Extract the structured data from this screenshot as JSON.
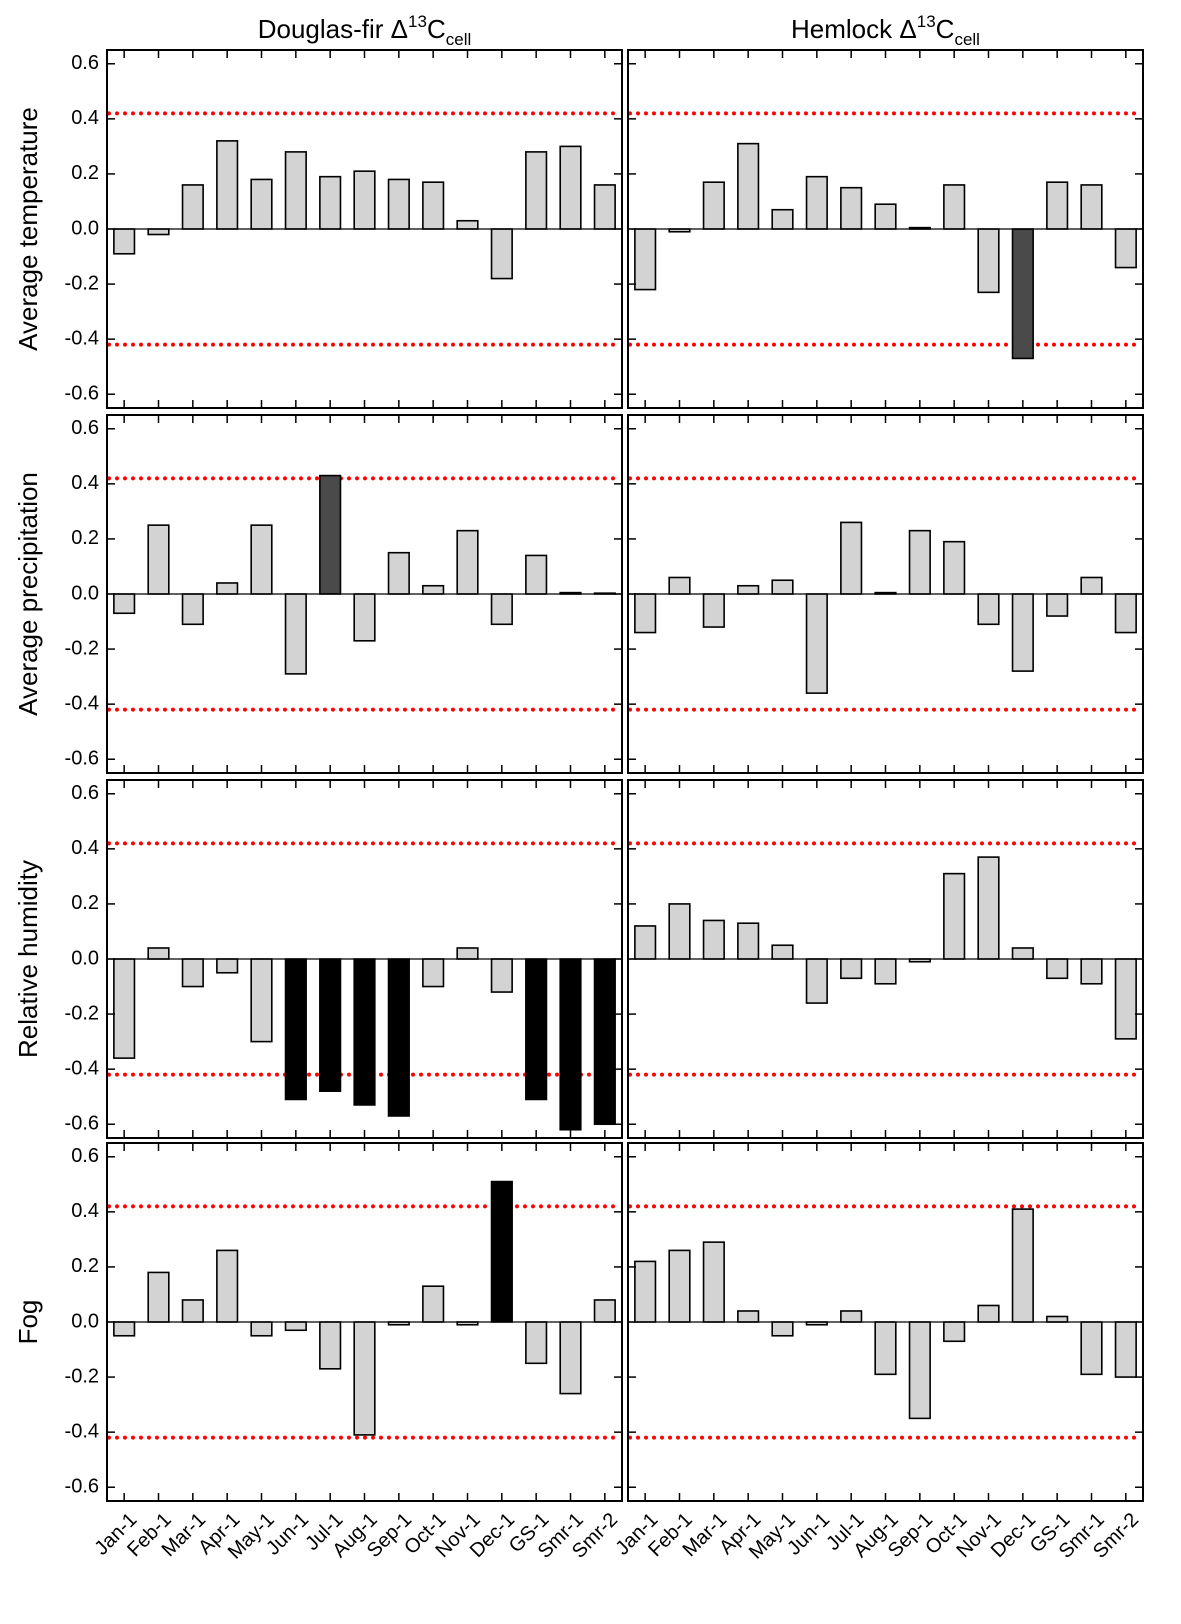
{
  "chart_data": [
    {
      "type": "bar",
      "title": {
        "text": "Douglas-fir Δ",
        "sup": "13",
        "base": "C",
        "sub": "cell"
      },
      "ylabel": "Average temperature",
      "categories": [
        "Jan-1",
        "Feb-1",
        "Mar-1",
        "Apr-1",
        "May-1",
        "Jun-1",
        "Jul-1",
        "Aug-1",
        "Sep-1",
        "Oct-1",
        "Nov-1",
        "Dec-1",
        "GS-1",
        "Smr-1",
        "Smr-2"
      ],
      "values": [
        -0.09,
        -0.02,
        0.16,
        0.32,
        0.18,
        0.28,
        0.19,
        0.21,
        0.18,
        0.17,
        0.03,
        -0.18,
        0.28,
        0.3,
        0.16
      ],
      "colors": [
        "#d3d3d3",
        "#d3d3d3",
        "#d3d3d3",
        "#d3d3d3",
        "#d3d3d3",
        "#d3d3d3",
        "#d3d3d3",
        "#d3d3d3",
        "#d3d3d3",
        "#d3d3d3",
        "#d3d3d3",
        "#d3d3d3",
        "#d3d3d3",
        "#d3d3d3",
        "#d3d3d3"
      ],
      "ylim": [
        -0.65,
        0.65
      ],
      "yticks": [
        -0.6,
        -0.4,
        -0.2,
        {
          "value": 0,
          "label": "0.0"
        },
        0.2,
        0.4,
        0.6
      ],
      "reference_lines": [
        0.42,
        -0.42
      ],
      "reference_color": "#ff0000"
    },
    {
      "type": "bar",
      "title": {
        "text": "Hemlock Δ",
        "sup": "13",
        "base": "C",
        "sub": "cell"
      },
      "categories": [
        "Jan-1",
        "Feb-1",
        "Mar-1",
        "Apr-1",
        "May-1",
        "Jun-1",
        "Jul-1",
        "Aug-1",
        "Sep-1",
        "Oct-1",
        "Nov-1",
        "Dec-1",
        "GS-1",
        "Smr-1",
        "Smr-2"
      ],
      "values": [
        -0.22,
        -0.01,
        0.17,
        0.31,
        0.07,
        0.19,
        0.15,
        0.09,
        0.005,
        0.16,
        -0.23,
        -0.47,
        0.17,
        0.16,
        -0.14
      ],
      "colors": [
        "#d3d3d3",
        "#d3d3d3",
        "#d3d3d3",
        "#d3d3d3",
        "#d3d3d3",
        "#d3d3d3",
        "#d3d3d3",
        "#d3d3d3",
        "#d3d3d3",
        "#d3d3d3",
        "#d3d3d3",
        "#4a4a4a",
        "#d3d3d3",
        "#d3d3d3",
        "#d3d3d3"
      ],
      "ylim": [
        -0.65,
        0.65
      ],
      "yticks": [
        -0.6,
        -0.4,
        -0.2,
        {
          "value": 0,
          "label": "0.0"
        },
        0.2,
        0.4,
        0.6
      ],
      "reference_lines": [
        0.42,
        -0.42
      ],
      "reference_color": "#ff0000"
    },
    {
      "type": "bar",
      "ylabel": "Average precipitation",
      "categories": [
        "Jan-1",
        "Feb-1",
        "Mar-1",
        "Apr-1",
        "May-1",
        "Jun-1",
        "Jul-1",
        "Aug-1",
        "Sep-1",
        "Oct-1",
        "Nov-1",
        "Dec-1",
        "GS-1",
        "Smr-1",
        "Smr-2"
      ],
      "values": [
        -0.07,
        0.25,
        -0.11,
        0.04,
        0.25,
        -0.29,
        0.43,
        -0.17,
        0.15,
        0.03,
        0.23,
        -0.11,
        0.14,
        0.005,
        0.003
      ],
      "colors": [
        "#d3d3d3",
        "#d3d3d3",
        "#d3d3d3",
        "#d3d3d3",
        "#d3d3d3",
        "#d3d3d3",
        "#4a4a4a",
        "#d3d3d3",
        "#d3d3d3",
        "#d3d3d3",
        "#d3d3d3",
        "#d3d3d3",
        "#d3d3d3",
        "#d3d3d3",
        "#d3d3d3"
      ],
      "ylim": [
        -0.65,
        0.65
      ],
      "yticks": [
        -0.6,
        -0.4,
        -0.2,
        {
          "value": 0,
          "label": "0.0"
        },
        0.2,
        0.4,
        0.6
      ],
      "reference_lines": [
        0.42,
        -0.42
      ],
      "reference_color": "#ff0000"
    },
    {
      "type": "bar",
      "categories": [
        "Jan-1",
        "Feb-1",
        "Mar-1",
        "Apr-1",
        "May-1",
        "Jun-1",
        "Jul-1",
        "Aug-1",
        "Sep-1",
        "Oct-1",
        "Nov-1",
        "Dec-1",
        "GS-1",
        "Smr-1",
        "Smr-2"
      ],
      "values": [
        -0.14,
        0.06,
        -0.12,
        0.03,
        0.05,
        -0.36,
        0.26,
        0.005,
        0.23,
        0.19,
        -0.11,
        -0.28,
        -0.08,
        0.06,
        -0.14
      ],
      "colors": [
        "#d3d3d3",
        "#d3d3d3",
        "#d3d3d3",
        "#d3d3d3",
        "#d3d3d3",
        "#d3d3d3",
        "#d3d3d3",
        "#d3d3d3",
        "#d3d3d3",
        "#d3d3d3",
        "#d3d3d3",
        "#d3d3d3",
        "#d3d3d3",
        "#d3d3d3",
        "#d3d3d3"
      ],
      "ylim": [
        -0.65,
        0.65
      ],
      "yticks": [
        -0.6,
        -0.4,
        -0.2,
        {
          "value": 0,
          "label": "0.0"
        },
        0.2,
        0.4,
        0.6
      ],
      "reference_lines": [
        0.42,
        -0.42
      ],
      "reference_color": "#ff0000"
    },
    {
      "type": "bar",
      "ylabel": "Relative humidity",
      "categories": [
        "Jan-1",
        "Feb-1",
        "Mar-1",
        "Apr-1",
        "May-1",
        "Jun-1",
        "Jul-1",
        "Aug-1",
        "Sep-1",
        "Oct-1",
        "Nov-1",
        "Dec-1",
        "GS-1",
        "Smr-1",
        "Smr-2"
      ],
      "values": [
        -0.36,
        0.04,
        -0.1,
        -0.05,
        -0.3,
        -0.51,
        -0.48,
        -0.53,
        -0.57,
        -0.1,
        0.04,
        -0.12,
        -0.51,
        -0.62,
        -0.6
      ],
      "colors": [
        "#d3d3d3",
        "#d3d3d3",
        "#d3d3d3",
        "#d3d3d3",
        "#d3d3d3",
        "#000000",
        "#000000",
        "#000000",
        "#000000",
        "#d3d3d3",
        "#d3d3d3",
        "#d3d3d3",
        "#000000",
        "#000000",
        "#000000"
      ],
      "ylim": [
        -0.65,
        0.65
      ],
      "yticks": [
        -0.6,
        -0.4,
        -0.2,
        {
          "value": 0,
          "label": "0.0"
        },
        0.2,
        0.4,
        0.6
      ],
      "reference_lines": [
        0.42,
        -0.42
      ],
      "reference_color": "#ff0000"
    },
    {
      "type": "bar",
      "categories": [
        "Jan-1",
        "Feb-1",
        "Mar-1",
        "Apr-1",
        "May-1",
        "Jun-1",
        "Jul-1",
        "Aug-1",
        "Sep-1",
        "Oct-1",
        "Nov-1",
        "Dec-1",
        "GS-1",
        "Smr-1",
        "Smr-2"
      ],
      "values": [
        0.12,
        0.2,
        0.14,
        0.13,
        0.05,
        -0.16,
        -0.07,
        -0.09,
        -0.01,
        0.31,
        0.37,
        0.04,
        -0.07,
        -0.09,
        -0.29
      ],
      "colors": [
        "#d3d3d3",
        "#d3d3d3",
        "#d3d3d3",
        "#d3d3d3",
        "#d3d3d3",
        "#d3d3d3",
        "#d3d3d3",
        "#d3d3d3",
        "#d3d3d3",
        "#d3d3d3",
        "#d3d3d3",
        "#d3d3d3",
        "#d3d3d3",
        "#d3d3d3",
        "#d3d3d3"
      ],
      "ylim": [
        -0.65,
        0.65
      ],
      "yticks": [
        -0.6,
        -0.4,
        -0.2,
        {
          "value": 0,
          "label": "0.0"
        },
        0.2,
        0.4,
        0.6
      ],
      "reference_lines": [
        0.42,
        -0.42
      ],
      "reference_color": "#ff0000"
    },
    {
      "type": "bar",
      "ylabel": "Fog",
      "categories": [
        "Jan-1",
        "Feb-1",
        "Mar-1",
        "Apr-1",
        "May-1",
        "Jun-1",
        "Jul-1",
        "Aug-1",
        "Sep-1",
        "Oct-1",
        "Nov-1",
        "Dec-1",
        "GS-1",
        "Smr-1",
        "Smr-2"
      ],
      "values": [
        -0.05,
        0.18,
        0.08,
        0.26,
        -0.05,
        -0.03,
        -0.17,
        -0.41,
        -0.01,
        0.13,
        -0.01,
        0.51,
        -0.15,
        -0.26,
        0.08
      ],
      "colors": [
        "#d3d3d3",
        "#d3d3d3",
        "#d3d3d3",
        "#d3d3d3",
        "#d3d3d3",
        "#d3d3d3",
        "#d3d3d3",
        "#d3d3d3",
        "#d3d3d3",
        "#d3d3d3",
        "#d3d3d3",
        "#000000",
        "#d3d3d3",
        "#d3d3d3",
        "#d3d3d3"
      ],
      "ylim": [
        -0.65,
        0.65
      ],
      "yticks": [
        -0.6,
        -0.4,
        -0.2,
        {
          "value": 0,
          "label": "0.0"
        },
        0.2,
        0.4,
        0.6
      ],
      "reference_lines": [
        0.42,
        -0.42
      ],
      "reference_color": "#ff0000"
    },
    {
      "type": "bar",
      "categories": [
        "Jan-1",
        "Feb-1",
        "Mar-1",
        "Apr-1",
        "May-1",
        "Jun-1",
        "Jul-1",
        "Aug-1",
        "Sep-1",
        "Oct-1",
        "Nov-1",
        "Dec-1",
        "GS-1",
        "Smr-1",
        "Smr-2"
      ],
      "values": [
        0.22,
        0.26,
        0.29,
        0.04,
        -0.05,
        -0.01,
        0.04,
        -0.19,
        -0.35,
        -0.07,
        0.06,
        0.41,
        0.02,
        -0.19,
        -0.2
      ],
      "colors": [
        "#d3d3d3",
        "#d3d3d3",
        "#d3d3d3",
        "#d3d3d3",
        "#d3d3d3",
        "#d3d3d3",
        "#d3d3d3",
        "#d3d3d3",
        "#d3d3d3",
        "#d3d3d3",
        "#d3d3d3",
        "#d3d3d3",
        "#d3d3d3",
        "#d3d3d3",
        "#d3d3d3"
      ],
      "ylim": [
        -0.65,
        0.65
      ],
      "yticks": [
        -0.6,
        -0.4,
        -0.2,
        {
          "value": 0,
          "label": "0.0"
        },
        0.2,
        0.4,
        0.6
      ],
      "reference_lines": [
        0.42,
        -0.42
      ],
      "reference_color": "#ff0000"
    }
  ]
}
